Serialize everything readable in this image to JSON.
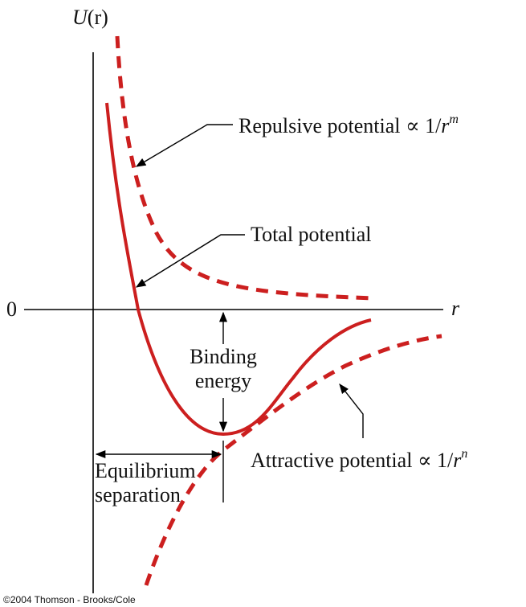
{
  "axes": {
    "y_label_main": "U",
    "y_label_paren": "(r)",
    "zero_label": "0",
    "x_label": "r"
  },
  "labels": {
    "repulsive": "Repulsive potential",
    "repulsive_formula": "∝ 1/",
    "repulsive_var": "r",
    "repulsive_exp": "m",
    "total": "Total potential",
    "binding_line1": "Binding",
    "binding_line2": "energy",
    "attractive": "Attractive potential",
    "attractive_formula": "∝ 1/",
    "attractive_var": "r",
    "attractive_exp": "n",
    "equilibrium_line1": "Equilibrium",
    "equilibrium_line2": "separation"
  },
  "credit": "©2004 Thomson - Brooks/Cole",
  "colors": {
    "curve": "#cc1f1f",
    "axis": "#000000",
    "text": "#111111"
  }
}
